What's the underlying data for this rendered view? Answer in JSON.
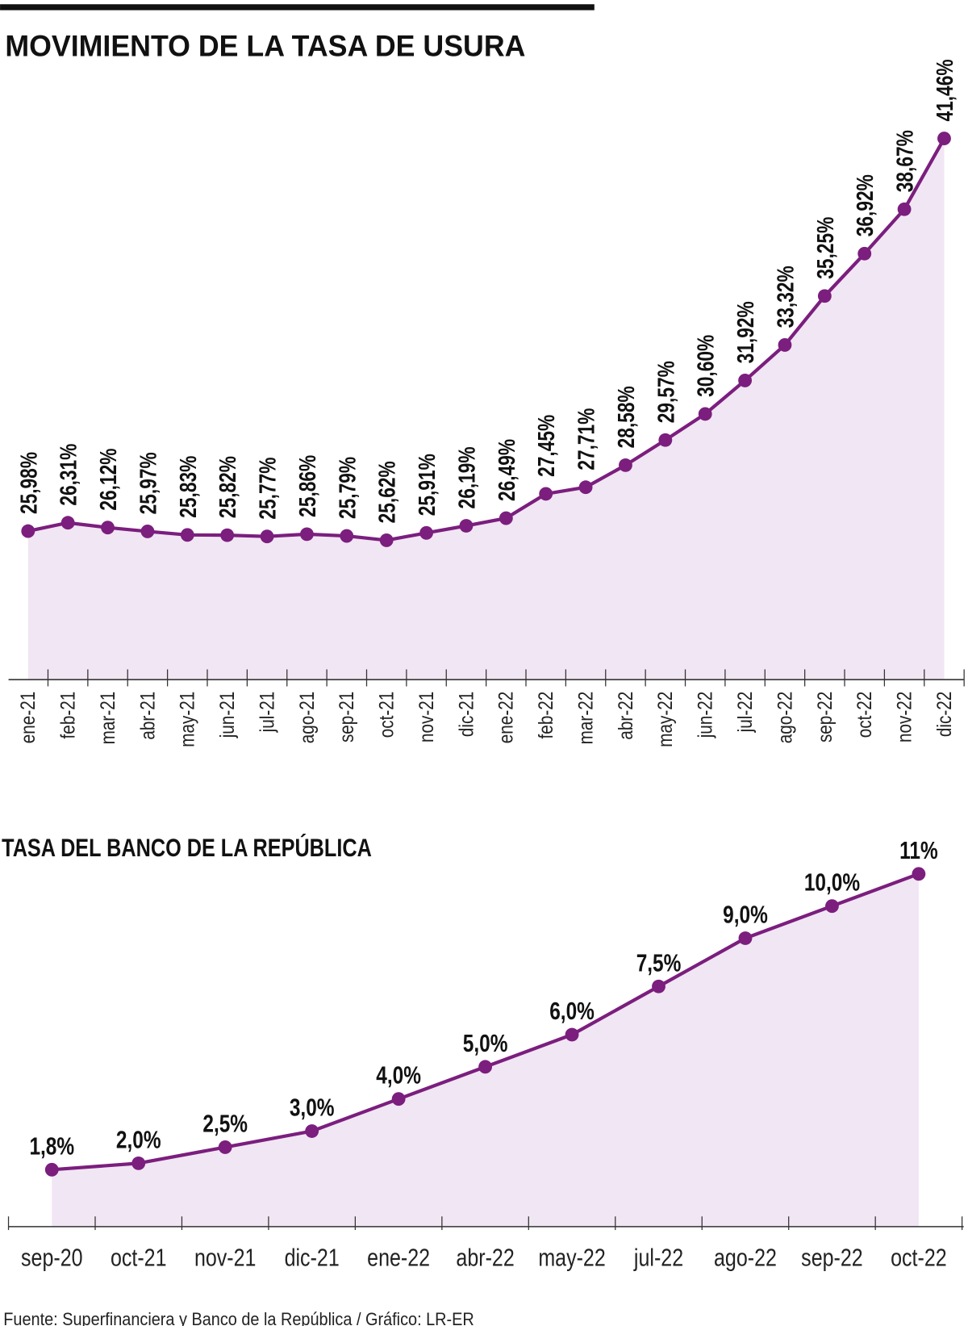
{
  "colors": {
    "line": "#7b1e7e",
    "fill": "#f1e6f3",
    "axis": "#333333"
  },
  "chart_data": [
    {
      "type": "area",
      "title": "MOVIMIENTO DE LA TASA DE USURA",
      "categories": [
        "ene-21",
        "feb-21",
        "mar-21",
        "abr-21",
        "may-21",
        "jun-21",
        "jul-21",
        "ago-21",
        "sep-21",
        "oct-21",
        "nov-21",
        "dic-21",
        "ene-22",
        "feb-22",
        "mar-22",
        "abr-22",
        "may-22",
        "jun-22",
        "jul-22",
        "ago-22",
        "sep-22",
        "oct-22",
        "nov-22",
        "dic-22"
      ],
      "values": [
        25.98,
        26.31,
        26.12,
        25.97,
        25.83,
        25.82,
        25.77,
        25.86,
        25.79,
        25.62,
        25.91,
        26.19,
        26.49,
        27.45,
        27.71,
        28.58,
        29.57,
        30.6,
        31.92,
        33.32,
        35.25,
        36.92,
        38.67,
        41.46
      ],
      "data_labels": [
        "25,98%",
        "26,31%",
        "26,12%",
        "25,97%",
        "25,83%",
        "25,82%",
        "25,77%",
        "25,86%",
        "25,79%",
        "25,62%",
        "25,91%",
        "26,19%",
        "26,49%",
        "27,45%",
        "27,71%",
        "28,58%",
        "29,57%",
        "30,60%",
        "31,92%",
        "33,32%",
        "35,25%",
        "36,92%",
        "38,67%",
        "41,46%"
      ],
      "grid": false
    },
    {
      "type": "area",
      "title": "TASA DEL BANCO DE LA REPÚBLICA",
      "categories": [
        "sep-20",
        "oct-21",
        "nov-21",
        "dic-21",
        "ene-22",
        "abr-22",
        "may-22",
        "jul-22",
        "ago-22",
        "sep-22",
        "oct-22"
      ],
      "values": [
        1.8,
        2.0,
        2.5,
        3.0,
        4.0,
        5.0,
        6.0,
        7.5,
        9.0,
        10.0,
        11.0
      ],
      "data_labels": [
        "1,8%",
        "2,0%",
        "2,5%",
        "3,0%",
        "4,0%",
        "5,0%",
        "6,0%",
        "7,5%",
        "9,0%",
        "10,0%",
        "11%"
      ],
      "grid": false
    }
  ],
  "source": "Fuente: Superfinanciera y Banco de la República / Gráfico: LR-ER"
}
